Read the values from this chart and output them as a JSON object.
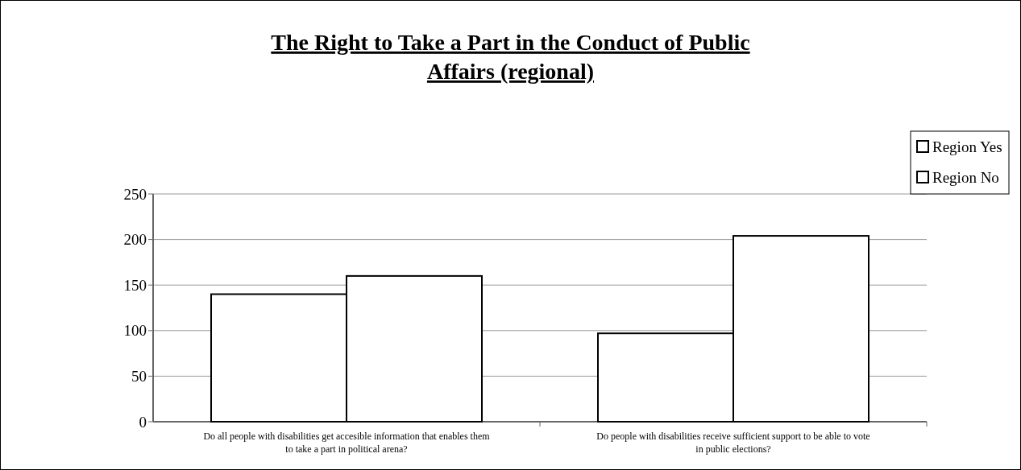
{
  "chart_data": {
    "type": "bar",
    "title": "The Right to Take a Part in the Conduct of Public Affairs (regional)",
    "categories": [
      "Do all people with disabilities get accesible information that enables them to take a part in political arena?",
      "Do people with disabilities receive sufficient support to be able to vote in public elections?"
    ],
    "series": [
      {
        "name": "Region Yes",
        "color": "#ffffff",
        "values": [
          140,
          97
        ]
      },
      {
        "name": "Region No",
        "color": "#ffffff",
        "values": [
          160,
          204
        ]
      }
    ],
    "ylim": [
      0,
      250
    ],
    "yticks": [
      0,
      50,
      100,
      150,
      200,
      250
    ],
    "grid": "y",
    "legend": "top right"
  }
}
